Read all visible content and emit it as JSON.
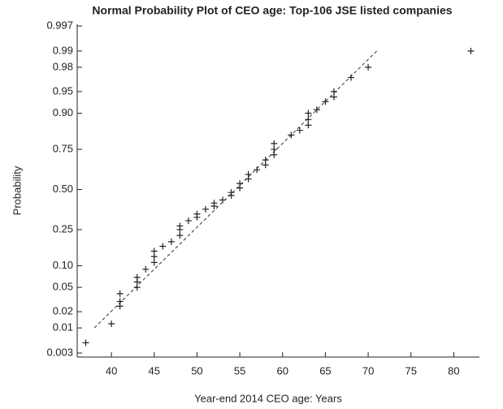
{
  "chart_data": {
    "type": "scatter",
    "title": "Normal Probability Plot of CEO age: Top-106 JSE listed companies",
    "xlabel": "Year-end 2014 CEO age: Years",
    "ylabel": "Probability",
    "yscale": "probit",
    "color": "#222222",
    "series": [
      {
        "name": "CEO age",
        "color": "#222222",
        "x": [
          37,
          40,
          41,
          41,
          41,
          43,
          43,
          43,
          44,
          45,
          45,
          45,
          46,
          47,
          48,
          48,
          48,
          49,
          50,
          50,
          51,
          52,
          52,
          53,
          54,
          54,
          55,
          55,
          56,
          56,
          57,
          58,
          58,
          59,
          59,
          59,
          61,
          62,
          63,
          63,
          63,
          64,
          65,
          66,
          66,
          68,
          70,
          82
        ],
        "y": [
          0.005,
          0.012,
          0.025,
          0.03,
          0.04,
          0.05,
          0.06,
          0.07,
          0.09,
          0.11,
          0.13,
          0.15,
          0.17,
          0.19,
          0.22,
          0.25,
          0.27,
          0.3,
          0.32,
          0.34,
          0.37,
          0.39,
          0.41,
          0.43,
          0.46,
          0.48,
          0.51,
          0.54,
          0.57,
          0.6,
          0.63,
          0.66,
          0.69,
          0.72,
          0.75,
          0.78,
          0.82,
          0.84,
          0.86,
          0.88,
          0.9,
          0.91,
          0.93,
          0.94,
          0.95,
          0.97,
          0.98,
          0.99
        ]
      }
    ],
    "reference_line": {
      "x": [
        38,
        71
      ],
      "y": [
        0.01,
        0.99
      ]
    },
    "xlim": [
      36,
      83
    ],
    "xticks": [
      40,
      45,
      50,
      55,
      60,
      65,
      70,
      75,
      80
    ],
    "ylim": [
      0.003,
      0.997
    ],
    "yticks": [
      0.003,
      0.01,
      0.02,
      0.05,
      {
        "value": 0.1,
        "label": "0.10"
      },
      0.25,
      {
        "value": 0.5,
        "label": "0.50"
      },
      0.75,
      {
        "value": 0.9,
        "label": "0.90"
      },
      0.95,
      0.98,
      0.99,
      0.997
    ]
  }
}
